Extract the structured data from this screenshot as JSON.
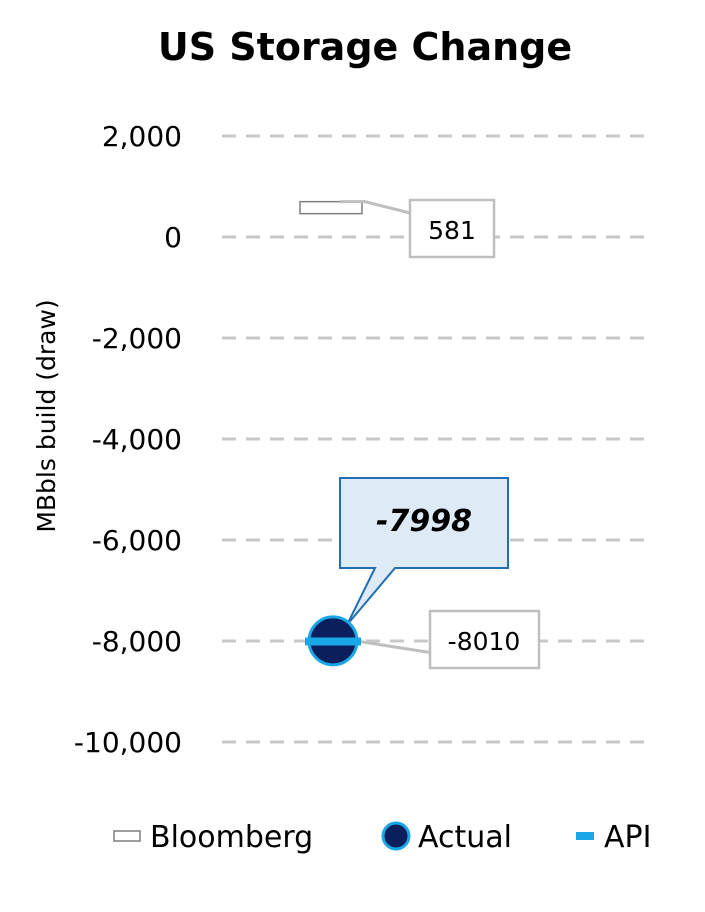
{
  "chart_data": {
    "type": "scatter",
    "title": "US Storage Change",
    "xlabel": "",
    "ylabel": "MBbls build (draw)",
    "ylim": [
      -10000,
      2000
    ],
    "yticks": [
      2000,
      0,
      -2000,
      -4000,
      -6000,
      -8000,
      -10000
    ],
    "ytick_labels": [
      "2,000",
      "0",
      "-2,000",
      "-4,000",
      "-6,000",
      "-8,000",
      "-10,000"
    ],
    "grid": true,
    "legend_position": "bottom",
    "series": [
      {
        "name": "Bloomberg",
        "values": [
          581
        ],
        "label": "581",
        "color": "#a6a6a6",
        "marker": "bar"
      },
      {
        "name": "Actual",
        "values": [
          -7998
        ],
        "label": "-7998",
        "color": "#0a1f5c",
        "marker": "circle"
      },
      {
        "name": "API",
        "values": [
          -8010
        ],
        "label": "-8010",
        "color": "#1aa7e8",
        "marker": "dash"
      }
    ]
  },
  "colors": {
    "grid": "#c8c8c8",
    "actual_outline": "#1aa7e8",
    "actual_callout_fill": "#deeaf6",
    "actual_callout_border": "#1f6fb2",
    "label_box_border": "#bfbfbf"
  }
}
